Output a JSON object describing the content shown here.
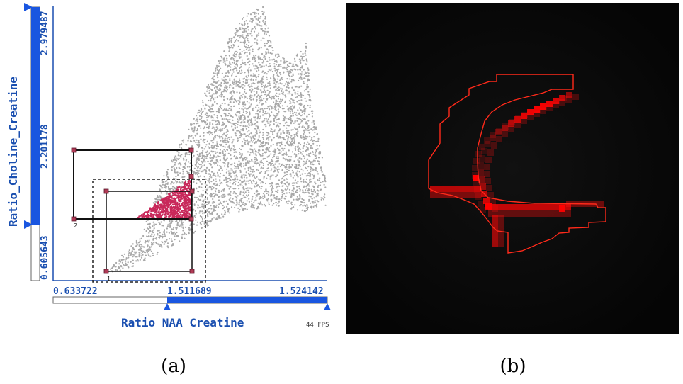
{
  "panel_a": {
    "caption": "(a)",
    "y_axis": {
      "title": "Ratio_Choline_Creatine",
      "ticks": [
        "0.605643",
        "2.201178",
        "2.979487"
      ]
    },
    "x_axis": {
      "title": "Ratio NAA Creatine",
      "ticks": [
        "0.633722",
        "1.511689",
        "1.524142"
      ]
    },
    "fps": "44 FPS",
    "brush_labels": [
      "1",
      "2"
    ],
    "colors": {
      "points": "#a8a8a8",
      "selected": "#c8285a",
      "slider": "#1a56e0",
      "accent": "#1a4fb0"
    }
  },
  "panel_b": {
    "caption": "(b)",
    "colors": {
      "background": "#050505",
      "highlight": "#ff1010"
    }
  }
}
